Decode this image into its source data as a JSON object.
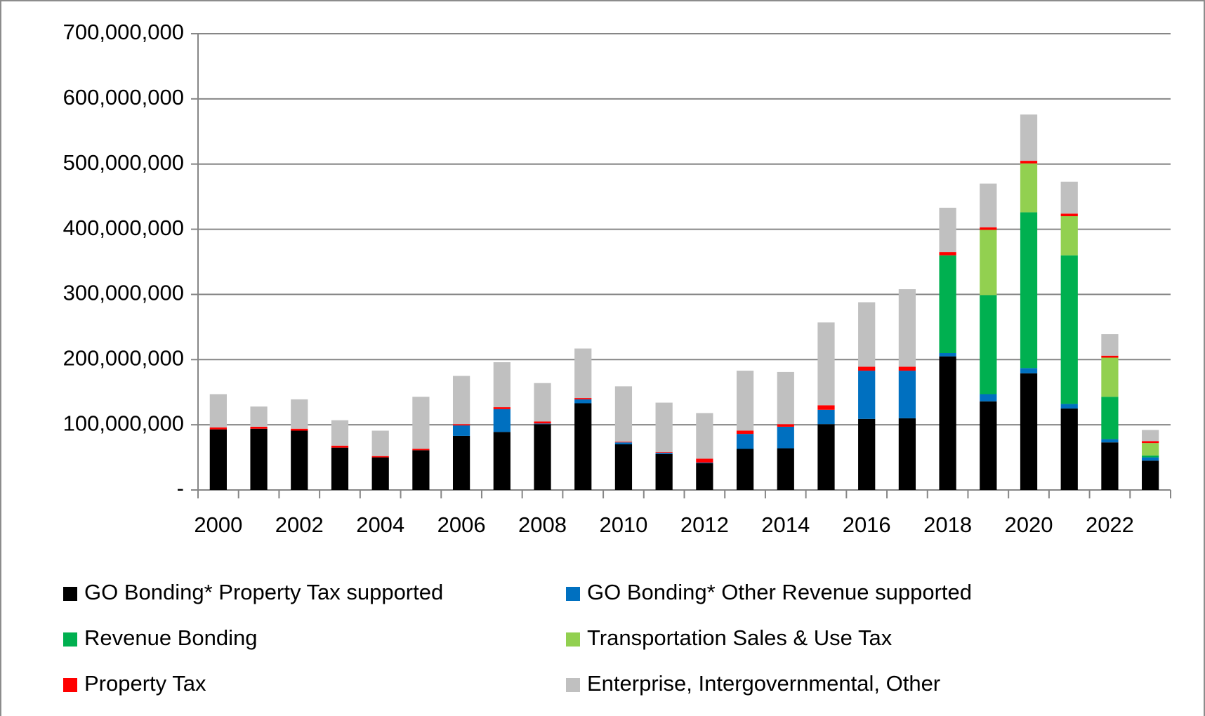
{
  "chart_data": {
    "type": "stacked_bar",
    "categories": [
      "2000",
      null,
      "2002",
      null,
      "2004",
      null,
      "2006",
      null,
      "2008",
      null,
      "2010",
      null,
      "2012",
      null,
      "2014",
      null,
      "2016",
      null,
      "2018",
      null,
      "2020",
      null,
      "2022",
      null
    ],
    "series": [
      {
        "name": "GO Bonding* Property Tax supported",
        "color": "#000000",
        "values": [
          93000000,
          94000000,
          91000000,
          65000000,
          50000000,
          61000000,
          83000000,
          89000000,
          101000000,
          133000000,
          70000000,
          55000000,
          41000000,
          63000000,
          64000000,
          101000000,
          109000000,
          110000000,
          205000000,
          136000000,
          179000000,
          125000000,
          73000000,
          45000000
        ]
      },
      {
        "name": "GO Bonding* Other Revenue supported",
        "color": "#0070c0",
        "values": [
          0,
          0,
          0,
          0,
          0,
          0,
          16000000,
          35000000,
          1000000,
          6000000,
          3000000,
          2000000,
          1000000,
          23000000,
          33000000,
          22000000,
          74000000,
          73000000,
          5000000,
          11000000,
          8000000,
          7000000,
          5000000,
          5000000
        ]
      },
      {
        "name": "Revenue Bonding",
        "color": "#00b050",
        "values": [
          0,
          0,
          0,
          0,
          0,
          0,
          0,
          0,
          0,
          0,
          0,
          0,
          0,
          0,
          0,
          0,
          0,
          0,
          150000000,
          152000000,
          239000000,
          228000000,
          65000000,
          3000000
        ]
      },
      {
        "name": "Transportation Sales & Use Tax",
        "color": "#92d050",
        "values": [
          0,
          0,
          0,
          0,
          0,
          0,
          0,
          0,
          0,
          0,
          0,
          0,
          0,
          0,
          0,
          0,
          0,
          0,
          0,
          100000000,
          75000000,
          60000000,
          60000000,
          19000000
        ]
      },
      {
        "name": "Property Tax",
        "color": "#ff0000",
        "values": [
          3000000,
          3000000,
          3000000,
          3000000,
          2000000,
          2000000,
          2000000,
          3000000,
          3000000,
          2000000,
          1000000,
          1000000,
          6000000,
          5000000,
          4000000,
          7000000,
          6000000,
          6000000,
          5000000,
          4000000,
          4000000,
          4000000,
          3000000,
          3000000
        ]
      },
      {
        "name": "Enterprise, Intergovernmental, Other",
        "color": "#c0c0c0",
        "values": [
          51000000,
          31000000,
          45000000,
          39000000,
          39000000,
          80000000,
          74000000,
          69000000,
          59000000,
          76000000,
          85000000,
          76000000,
          70000000,
          92000000,
          80000000,
          127000000,
          99000000,
          119000000,
          68000000,
          67000000,
          71000000,
          49000000,
          33000000,
          17000000
        ]
      }
    ],
    "ylim": [
      0,
      700000000
    ],
    "yticks": [
      {
        "value": 0,
        "label": "-"
      },
      {
        "value": 100000000,
        "label": "100,000,000"
      },
      {
        "value": 200000000,
        "label": "200,000,000"
      },
      {
        "value": 300000000,
        "label": "300,000,000"
      },
      {
        "value": 400000000,
        "label": "400,000,000"
      },
      {
        "value": 500000000,
        "label": "500,000,000"
      },
      {
        "value": 600000000,
        "label": "600,000,000"
      },
      {
        "value": 700000000,
        "label": "700,000,000"
      }
    ],
    "grid": true,
    "legend": "bottom"
  }
}
